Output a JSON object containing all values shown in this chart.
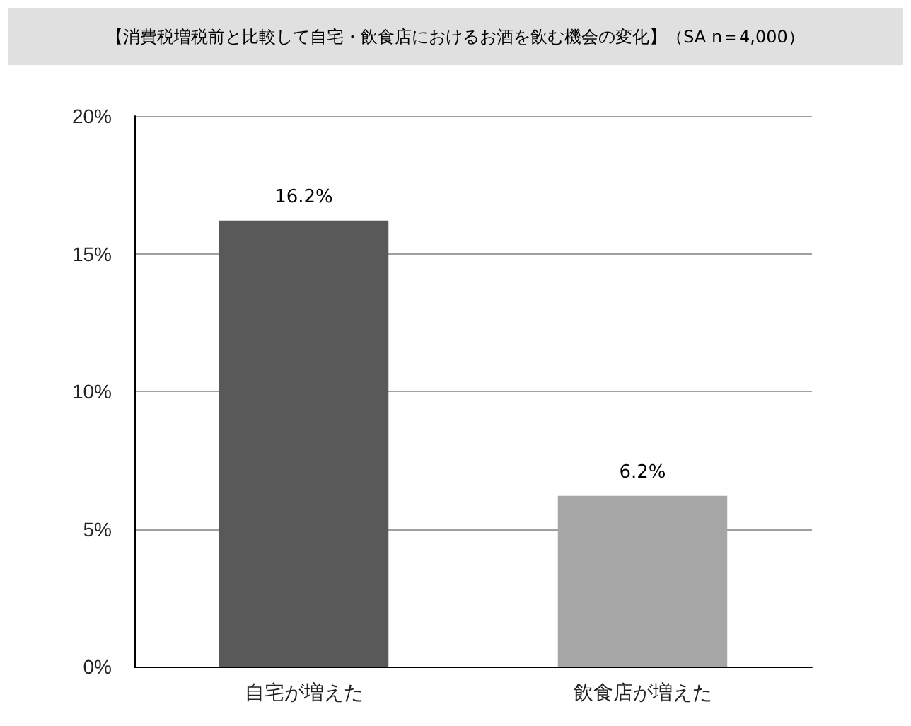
{
  "chart_data": {
    "type": "bar",
    "title": "【消費税増税前と比較して自宅・飲食店におけるお酒を飲む機会の変化】（SA n＝4,000）",
    "categories": [
      "自宅が増えた",
      "飲食店が増えた"
    ],
    "values": [
      16.2,
      6.2
    ],
    "colors": [
      "#595959",
      "#a6a6a6"
    ],
    "value_labels": [
      "16.2%",
      "6.2%"
    ],
    "ylim": [
      0,
      20
    ],
    "yticks": [
      {
        "value": 0,
        "label": "0%"
      },
      {
        "value": 5,
        "label": "5%"
      },
      {
        "value": 10,
        "label": "10%"
      },
      {
        "value": 15,
        "label": "15%"
      },
      {
        "value": 20,
        "label": "20%"
      }
    ],
    "grid": "y"
  }
}
